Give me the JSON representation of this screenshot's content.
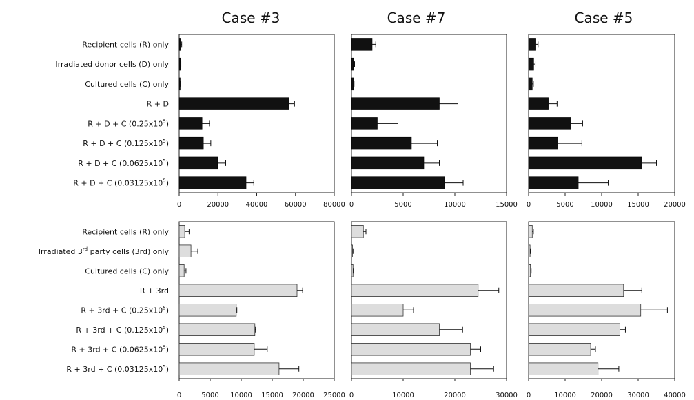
{
  "case_titles": [
    "Case #3",
    "Case #7",
    "Case #5"
  ],
  "chart_data": [
    {
      "type": "bar",
      "orientation": "horizontal",
      "row": "top",
      "case": "Case #3",
      "categories": [
        "Recipient cells (R) only",
        "Irradiated donor cells (D) only",
        "Cultured cells (C) only",
        "R + D",
        "R + D + C (0.25x10^5)",
        "R + D + C (0.125x10^5)",
        "R + D + C (0.0625x10^5)",
        "R + D + C (0.03125x10^5)"
      ],
      "values": [
        800,
        600,
        400,
        56500,
        11800,
        12500,
        19800,
        34500
      ],
      "errors": [
        500,
        300,
        200,
        3000,
        3800,
        3800,
        4200,
        4000
      ],
      "xlim": [
        0,
        80000
      ],
      "xticks": [
        "0",
        "20000",
        "40000",
        "60000",
        "80000"
      ]
    },
    {
      "type": "bar",
      "orientation": "horizontal",
      "row": "top",
      "case": "Case #7",
      "categories": [
        "Recipient cells (R) only",
        "Irradiated donor cells (D) only",
        "Cultured cells (C) only",
        "R + D",
        "R + D + C (0.25x10^5)",
        "R + D + C (0.125x10^5)",
        "R + D + C (0.0625x10^5)",
        "R + D + C (0.03125x10^5)"
      ],
      "values": [
        2000,
        200,
        200,
        8500,
        2500,
        5800,
        7000,
        9000
      ],
      "errors": [
        350,
        100,
        50,
        1800,
        2000,
        2500,
        1500,
        1800
      ],
      "xlim": [
        0,
        15000
      ],
      "xticks": [
        "0",
        "5000",
        "10000",
        "15000"
      ]
    },
    {
      "type": "bar",
      "orientation": "horizontal",
      "row": "top",
      "case": "Case #5",
      "categories": [
        "Recipient cells (R) only",
        "Irradiated donor cells (D) only",
        "Cultured cells (C) only",
        "R + D",
        "R + D + C (0.25x10^5)",
        "R + D + C (0.125x10^5)",
        "R + D + C (0.0625x10^5)",
        "R + D + C (0.03125x10^5)"
      ],
      "values": [
        1000,
        700,
        500,
        2700,
        5800,
        4000,
        15500,
        6800
      ],
      "errors": [
        300,
        200,
        150,
        1200,
        1600,
        3300,
        2000,
        4100
      ],
      "xlim": [
        0,
        20000
      ],
      "xticks": [
        "0",
        "5000",
        "10000",
        "15000",
        "20000"
      ]
    },
    {
      "type": "bar",
      "orientation": "horizontal",
      "row": "bottom",
      "case": "Case #3",
      "categories": [
        "Recipient cells (R) only",
        "Irradiated 3rd party cells (3rd) only",
        "Cultured cells (C) only",
        "R + 3rd",
        "R + 3rd + C (0.25x10^5)",
        "R + 3rd + C (0.125x10^5)",
        "R + 3rd + C (0.0625x10^5)",
        "R + 3rd + C (0.03125x10^5)"
      ],
      "values": [
        900,
        1900,
        800,
        19000,
        9200,
        12200,
        12100,
        16100
      ],
      "errors": [
        700,
        1100,
        300,
        900,
        100,
        100,
        2100,
        3200
      ],
      "xlim": [
        0,
        25000
      ],
      "xticks": [
        "0",
        "5000",
        "10000",
        "15000",
        "20000",
        "25000"
      ]
    },
    {
      "type": "bar",
      "orientation": "horizontal",
      "row": "bottom",
      "case": "Case #7",
      "categories": [
        "Recipient cells (R) only",
        "Irradiated 3rd party cells (3rd) only",
        "Cultured cells (C) only",
        "R + 3rd",
        "R + 3rd + C (0.25x10^5)",
        "R + 3rd + C (0.125x10^5)",
        "R + 3rd + C (0.0625x10^5)",
        "R + 3rd + C (0.03125x10^5)"
      ],
      "values": [
        2300,
        200,
        300,
        24500,
        10000,
        17000,
        23000,
        23000
      ],
      "errors": [
        500,
        100,
        100,
        4000,
        2000,
        4500,
        2000,
        4500
      ],
      "xlim": [
        0,
        30000
      ],
      "xticks": [
        "0",
        "10000",
        "20000",
        "30000"
      ]
    },
    {
      "type": "bar",
      "orientation": "horizontal",
      "row": "bottom",
      "case": "Case #5",
      "categories": [
        "Recipient cells (R) only",
        "Irradiated 3rd party cells (3rd) only",
        "Cultured cells (C) only",
        "R + 3rd",
        "R + 3rd + C (0.25x10^5)",
        "R + 3rd + C (0.125x10^5)",
        "R + 3rd + C (0.0625x10^5)",
        "R + 3rd + C (0.03125x10^5)"
      ],
      "values": [
        1000,
        400,
        500,
        26000,
        30700,
        25000,
        17000,
        19000
      ],
      "errors": [
        300,
        100,
        200,
        5000,
        7300,
        1500,
        1300,
        5700
      ],
      "xlim": [
        0,
        40000
      ],
      "xticks": [
        "0",
        "10000",
        "20000",
        "30000",
        "40000"
      ]
    }
  ],
  "row_labels": {
    "top": [
      {
        "main": "Recipient cells (R) only"
      },
      {
        "main": "Irradiated donor cells (D) only"
      },
      {
        "main": "Cultured cells (C) only"
      },
      {
        "main": "R + D"
      },
      {
        "main": "R + D + C (0.25x10",
        "sup": "5",
        "tail": ")"
      },
      {
        "main": "R + D + C (0.125x10",
        "sup": "5",
        "tail": ")"
      },
      {
        "main": "R + D + C (0.0625x10",
        "sup": "5",
        "tail": ")"
      },
      {
        "main": "R + D + C (0.03125x10",
        "sup": "5",
        "tail": ")"
      }
    ],
    "bottom": [
      {
        "main": "Recipient cells (R) only"
      },
      {
        "main": "Irradiated 3",
        "sup": "rd",
        "tail": " party cells (3rd) only"
      },
      {
        "main": "Cultured cells (C) only"
      },
      {
        "main": "R + 3rd"
      },
      {
        "main": "R + 3rd + C (0.25x10",
        "sup": "5",
        "tail": ")"
      },
      {
        "main": "R + 3rd + C (0.125x10",
        "sup": "5",
        "tail": ")"
      },
      {
        "main": "R + 3rd + C (0.0625x10",
        "sup": "5",
        "tail": ")"
      },
      {
        "main": "R + 3rd + C (0.03125x10",
        "sup": "5",
        "tail": ")"
      }
    ]
  },
  "colors": {
    "top_bars": "#111111",
    "bottom_bars": "#dddddd"
  }
}
